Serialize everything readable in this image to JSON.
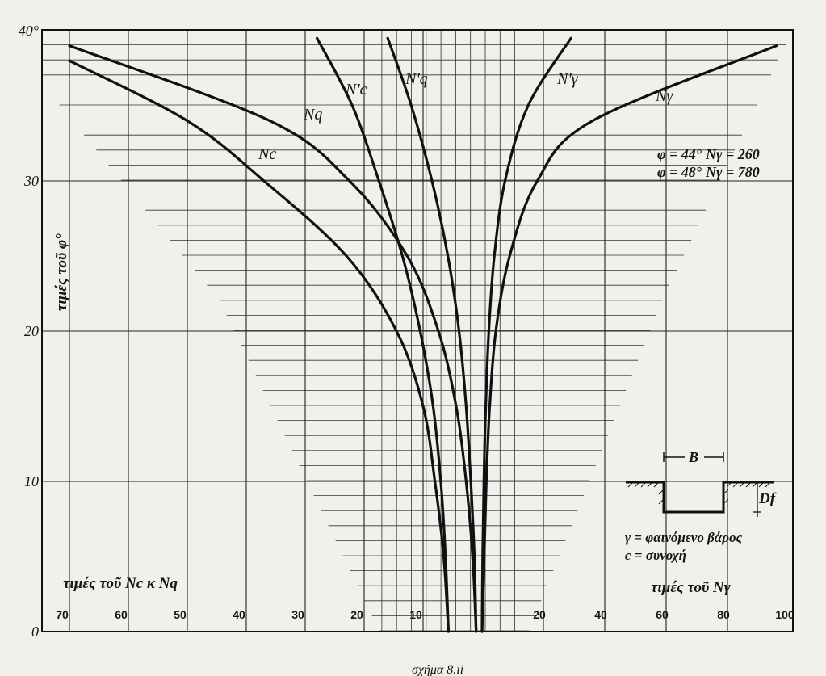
{
  "chart_data": {
    "type": "line",
    "phi_axis": {
      "label": "τιμές τοῦ φ°",
      "ticks": [
        "0",
        "10",
        "20",
        "30",
        "40°"
      ],
      "range": [
        0,
        40
      ]
    },
    "left_axis": {
      "label": "τιμές τοῦ Nc κ Nq",
      "ticks": [
        "70",
        "60",
        "50",
        "40",
        "30",
        "20",
        "10"
      ],
      "range": [
        0,
        75
      ],
      "direction": "increasing-to-left"
    },
    "right_axis": {
      "label": "τιμές τοῦ Nγ",
      "ticks": [
        "20",
        "40",
        "60",
        "80",
        "100"
      ],
      "range": [
        0,
        100
      ],
      "direction": "increasing-to-right"
    },
    "series": [
      {
        "name": "Nc",
        "axis": "left",
        "phi": [
          0,
          5,
          10,
          15,
          20,
          25,
          30,
          34,
          38
        ],
        "values": [
          5.7,
          6.5,
          8,
          10,
          14.5,
          23,
          37,
          50,
          70
        ]
      },
      {
        "name": "Nq",
        "axis": "left",
        "phi": [
          0,
          5,
          10,
          15,
          20,
          25,
          30,
          34,
          39
        ],
        "values": [
          1,
          1.6,
          2.7,
          4.4,
          7.4,
          12.7,
          22.5,
          36,
          70
        ]
      },
      {
        "name": "N'c",
        "axis": "left",
        "phi": [
          0,
          5,
          10,
          15,
          20,
          25,
          30,
          35,
          39.5
        ],
        "values": [
          5.7,
          6.2,
          7,
          8.3,
          10.5,
          13.5,
          17.5,
          22,
          28
        ]
      },
      {
        "name": "N'q",
        "axis": "left",
        "phi": [
          0,
          5,
          10,
          15,
          20,
          25,
          30,
          35,
          39.5
        ],
        "values": [
          1,
          1.3,
          1.9,
          2.7,
          3.9,
          5.8,
          8.5,
          12,
          16
        ]
      },
      {
        "name": "N'γ",
        "axis": "right",
        "phi": [
          0,
          5,
          10,
          15,
          20,
          25,
          30,
          35,
          39.5
        ],
        "values": [
          0,
          0.2,
          0.6,
          1.2,
          2.2,
          4,
          7.5,
          15,
          29
        ]
      },
      {
        "name": "Nγ",
        "axis": "right",
        "phi": [
          0,
          5,
          10,
          15,
          20,
          25,
          30,
          34,
          39
        ],
        "values": [
          0,
          0.7,
          1.4,
          2.5,
          4.5,
          9,
          18,
          36,
          96
        ]
      }
    ],
    "annotations": [
      {
        "phi": "φ = 44°",
        "ng": "Nγ = 260"
      },
      {
        "phi": "φ = 48°",
        "ng": "Nγ = 780"
      }
    ],
    "grid": true
  },
  "inset": {
    "b_label": "B",
    "df_label": "Df",
    "legend": [
      "γ = φαινόμενο βάρος",
      "c = συνοχή"
    ]
  },
  "bottom_caption": "σχήμα 8.ii"
}
